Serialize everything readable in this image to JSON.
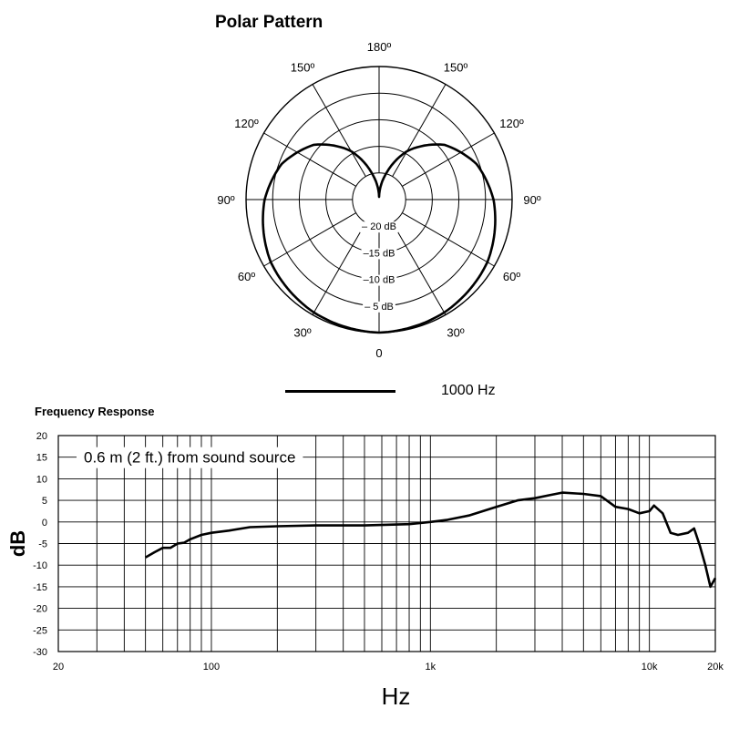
{
  "chart_data": [
    {
      "type": "polar",
      "title": "Polar Pattern",
      "angle_labels": [
        {
          "deg": 0,
          "label": "0"
        },
        {
          "deg": 30,
          "label": "30º"
        },
        {
          "deg": 60,
          "label": "60º"
        },
        {
          "deg": 90,
          "label": "90º"
        },
        {
          "deg": 120,
          "label": "120º"
        },
        {
          "deg": 150,
          "label": "150º"
        },
        {
          "deg": 180,
          "label": "180º"
        },
        {
          "deg": -30,
          "label": "30º"
        },
        {
          "deg": -60,
          "label": "60º"
        },
        {
          "deg": -90,
          "label": "90º"
        },
        {
          "deg": -120,
          "label": "120º"
        },
        {
          "deg": -150,
          "label": "150º"
        }
      ],
      "rings": [
        {
          "db": -5,
          "label": "– 5 dB"
        },
        {
          "db": -10,
          "label": "–10 dB"
        },
        {
          "db": -15,
          "label": "–15 dB"
        },
        {
          "db": -20,
          "label": "– 20 dB"
        }
      ],
      "range_db": [
        -25,
        0
      ],
      "series": [
        {
          "name": "1000 Hz",
          "pattern": "cardioid",
          "points": [
            [
              0,
              0
            ],
            [
              30,
              -0.5
            ],
            [
              60,
              -1.5
            ],
            [
              90,
              -3.5
            ],
            [
              110,
              -5.5
            ],
            [
              130,
              -9
            ],
            [
              150,
              -14.5
            ],
            [
              165,
              -20
            ],
            [
              180,
              -24.5
            ]
          ]
        }
      ]
    },
    {
      "type": "line",
      "title": "Frequency Response",
      "xlabel": "Hz",
      "ylabel": "dB",
      "xscale": "log",
      "xlim": [
        20,
        20000
      ],
      "ylim": [
        -30,
        20
      ],
      "x_tick_labels": [
        {
          "value": 20,
          "label": "20"
        },
        {
          "value": 100,
          "label": "100"
        },
        {
          "value": 1000,
          "label": "1k"
        },
        {
          "value": 10000,
          "label": "10k"
        },
        {
          "value": 20000,
          "label": "20k"
        }
      ],
      "y_ticks": [
        20,
        15,
        10,
        5,
        0,
        -5,
        -10,
        -15,
        -20,
        -25,
        -30
      ],
      "annotation": "0.6 m (2 ft.) from sound source",
      "grid": true,
      "series": [
        {
          "points": [
            [
              50,
              -8.2
            ],
            [
              55,
              -7
            ],
            [
              60,
              -6
            ],
            [
              65,
              -6
            ],
            [
              70,
              -5
            ],
            [
              75,
              -4.8
            ],
            [
              80,
              -4
            ],
            [
              90,
              -3
            ],
            [
              100,
              -2.5
            ],
            [
              120,
              -2
            ],
            [
              150,
              -1.2
            ],
            [
              200,
              -1
            ],
            [
              300,
              -0.8
            ],
            [
              500,
              -0.8
            ],
            [
              800,
              -0.5
            ],
            [
              1000,
              0
            ],
            [
              1200,
              0.5
            ],
            [
              1500,
              1.5
            ],
            [
              2000,
              3.5
            ],
            [
              2500,
              5
            ],
            [
              3000,
              5.5
            ],
            [
              3500,
              6.2
            ],
            [
              4000,
              6.8
            ],
            [
              5000,
              6.5
            ],
            [
              6000,
              6
            ],
            [
              7000,
              3.5
            ],
            [
              8000,
              3
            ],
            [
              9000,
              2
            ],
            [
              10000,
              2.5
            ],
            [
              10500,
              3.8
            ],
            [
              11500,
              2
            ],
            [
              12500,
              -2.5
            ],
            [
              13500,
              -3
            ],
            [
              15000,
              -2.5
            ],
            [
              16000,
              -1.5
            ],
            [
              17000,
              -5.5
            ],
            [
              18000,
              -10
            ],
            [
              19000,
              -15
            ],
            [
              20000,
              -13
            ]
          ]
        }
      ]
    }
  ]
}
